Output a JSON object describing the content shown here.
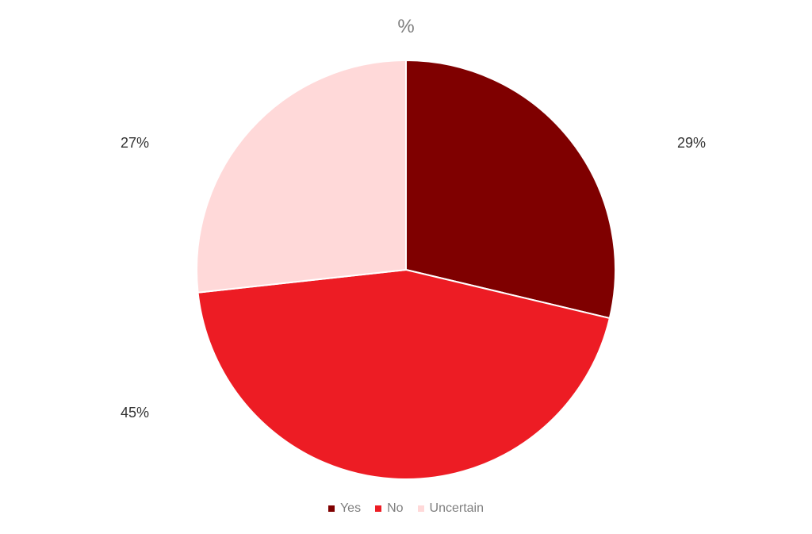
{
  "chart_data": {
    "type": "pie",
    "title": "%",
    "categories": [
      "Yes",
      "No",
      "Uncertain"
    ],
    "values": [
      29,
      45,
      27
    ],
    "labels": [
      "29%",
      "45%",
      "27%"
    ],
    "colors": [
      "#7f0000",
      "#ed1c24",
      "#ffd9d9"
    ],
    "legend_placement": "bottom"
  }
}
